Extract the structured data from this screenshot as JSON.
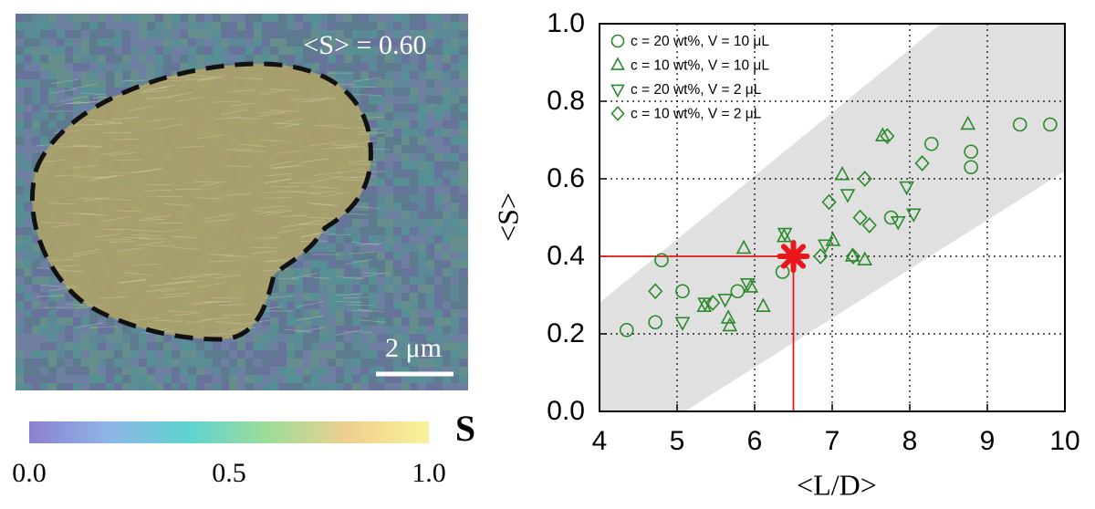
{
  "chart_data": [
    {
      "type": "image",
      "annotation": "<S> = 0.60",
      "scale_bar": "2 μm",
      "colorbar": {
        "label": "S",
        "lim": [
          0,
          1
        ],
        "ticks": [
          {
            "value": 0,
            "label": "0.0"
          },
          {
            "value": 0.5,
            "label": "0.5"
          },
          {
            "value": 1,
            "label": "1.0"
          }
        ],
        "colors": [
          "#8b80cf",
          "#8fb6e8",
          "#5fd3cf",
          "#9fdc9a",
          "#f0cf8e",
          "#f8f39a"
        ]
      }
    },
    {
      "type": "scatter",
      "xlabel": "<L/D>",
      "ylabel": "<S>",
      "xlim": [
        4,
        10
      ],
      "ylim": [
        0,
        1
      ],
      "xticks": [
        4,
        5,
        6,
        7,
        8,
        9,
        10
      ],
      "yticks": [
        {
          "value": 0,
          "label": "0.0"
        },
        {
          "value": 0.2,
          "label": "0.2"
        },
        {
          "value": 0.4,
          "label": "0.4"
        },
        {
          "value": 0.6,
          "label": "0.6"
        },
        {
          "value": 0.8,
          "label": "0.8"
        },
        {
          "value": 1,
          "label": "1.0"
        }
      ],
      "grid": true,
      "legend": "upper left",
      "band": {
        "color": "#e0e0e0",
        "x_upper": [
          4,
          8.4
        ],
        "y_upper": [
          0.28,
          1.0
        ],
        "x_lower": [
          5.1,
          10
        ],
        "y_lower": [
          0,
          0.62
        ]
      },
      "highlight": {
        "x": 6.5,
        "y": 0.4,
        "color": "#e8171c"
      },
      "series": [
        {
          "name": "c = 20 wt%, V = 10 μL",
          "marker": "circle",
          "color": "#2a8a2a",
          "x": [
            4.35,
            4.72,
            4.8,
            5.07,
            5.78,
            6.36,
            7.76,
            8.28,
            8.79,
            8.79,
            9.42,
            9.81
          ],
          "values": [
            0.21,
            0.23,
            0.39,
            0.31,
            0.31,
            0.36,
            0.5,
            0.69,
            0.67,
            0.63,
            0.74,
            0.74
          ]
        },
        {
          "name": "c = 10 wt%, V = 10 μL",
          "marker": "triangle-up",
          "color": "#2a8a2a",
          "x": [
            5.35,
            5.66,
            5.68,
            5.86,
            5.95,
            6.11,
            6.38,
            7.01,
            7.13,
            7.26,
            7.42,
            7.65,
            8.75
          ],
          "values": [
            0.27,
            0.24,
            0.22,
            0.42,
            0.32,
            0.27,
            0.45,
            0.44,
            0.61,
            0.4,
            0.39,
            0.71,
            0.74
          ]
        },
        {
          "name": "c = 20 wt%, V = 2 μL",
          "marker": "triangle-down",
          "color": "#2a8a2a",
          "x": [
            5.07,
            5.36,
            5.62,
            5.91,
            6.39,
            6.91,
            7.2,
            7.96,
            7.85,
            8.05
          ],
          "values": [
            0.23,
            0.28,
            0.29,
            0.33,
            0.46,
            0.43,
            0.56,
            0.58,
            0.49,
            0.51
          ]
        },
        {
          "name": "c = 10 wt%, V = 2 μL",
          "marker": "diamond",
          "color": "#2a8a2a",
          "x": [
            4.72,
            5.46,
            6.96,
            6.85,
            7.27,
            7.36,
            7.42,
            7.48,
            7.71,
            8.16
          ],
          "values": [
            0.31,
            0.28,
            0.54,
            0.4,
            0.4,
            0.5,
            0.6,
            0.48,
            0.71,
            0.64
          ]
        }
      ]
    }
  ]
}
